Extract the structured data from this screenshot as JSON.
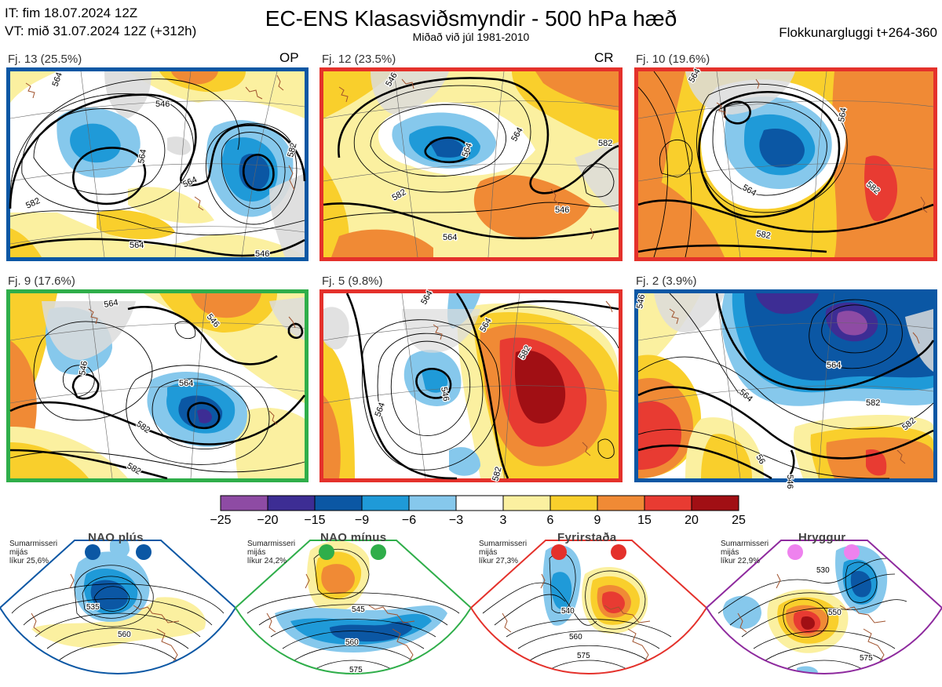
{
  "header": {
    "issue_time": "IT: fim 18.07.2024 12Z",
    "valid_time": "VT: mið 31.07.2024 12Z  (+312h)",
    "title": "EC-ENS Klasasviðsmyndir - 500 hPa hæð",
    "subtitle": "Miðað við júl 1981-2010",
    "window": "Flokkunargluggi t+264-360"
  },
  "colors": {
    "blue_frame": "#0b57a4",
    "red_frame": "#e4312b",
    "green_frame": "#2fae4a",
    "purple_frame": "#8e2a9e"
  },
  "panels": [
    {
      "label": "Fj. 13 (25.5%)",
      "tag": "OP",
      "frame": "blue",
      "contours": [
        "564",
        "546",
        "564",
        "564",
        "582",
        "582"
      ]
    },
    {
      "label": "Fj. 12 (23.5%)",
      "tag": "CR",
      "frame": "red",
      "contours": [
        "546",
        "564",
        "564",
        "582",
        "582",
        "564"
      ]
    },
    {
      "label": "Fj. 10 (19.6%)",
      "tag": "",
      "frame": "red",
      "contours": [
        "564",
        "564",
        "564",
        "582",
        "582"
      ]
    },
    {
      "label": "Fj. 9 (17.6%)",
      "tag": "",
      "frame": "green",
      "contours": [
        "564",
        "546",
        "546",
        "564",
        "582",
        "582"
      ]
    },
    {
      "label": "Fj. 5 (9.8%)",
      "tag": "",
      "frame": "red",
      "contours": [
        "564",
        "546",
        "564",
        "564",
        "582",
        "582"
      ]
    },
    {
      "label": "Fj. 2 (3.9%)",
      "tag": "",
      "frame": "blue",
      "contours": [
        "546",
        "564",
        "564",
        "582",
        "582",
        "56"
      ]
    }
  ],
  "chart_data": {
    "type": "heatmap",
    "title": "EC-ENS Klasasviðsmyndir - 500 hPa hæð",
    "subtitle": "Miðað við júl 1981-2010",
    "colorbar": {
      "ticks": [
        "−25",
        "−20",
        "−15",
        "−9",
        "−6",
        "−3",
        "3",
        "6",
        "9",
        "15",
        "20",
        "25"
      ],
      "colors": [
        "#8e4ba4",
        "#3d2d94",
        "#0b57a4",
        "#1f9ad8",
        "#86c8ec",
        "#ffffff",
        "#fbf0a0",
        "#f9cf2c",
        "#f08a35",
        "#e83b32",
        "#a10f14"
      ]
    },
    "clusters": [
      {
        "name": "Fj. 13",
        "percent": 25.5,
        "tag": "OP"
      },
      {
        "name": "Fj. 12",
        "percent": 23.5,
        "tag": "CR"
      },
      {
        "name": "Fj. 10",
        "percent": 19.6
      },
      {
        "name": "Fj. 9",
        "percent": 17.6
      },
      {
        "name": "Fj. 5",
        "percent": 9.8
      },
      {
        "name": "Fj. 2",
        "percent": 3.9
      }
    ],
    "regimes": [
      {
        "name": "NAO plús",
        "season": "Sumarmisseri",
        "note": "mijás",
        "likelihood": "líkur 25,6%",
        "percent": 25.6,
        "dot_color": "#0b57a4",
        "contours": [
          "535",
          "560"
        ]
      },
      {
        "name": "NAO mínus",
        "season": "Sumarmisseri",
        "note": "mijás",
        "likelihood": "líkur 24,2%",
        "percent": 24.2,
        "dot_color": "#2fae4a",
        "contours": [
          "545",
          "560",
          "575"
        ]
      },
      {
        "name": "Fyrirstaða",
        "season": "Sumarmisseri",
        "note": "mijás",
        "likelihood": "líkur 27,3%",
        "percent": 27.3,
        "dot_color": "#e4312b",
        "contours": [
          "540",
          "560",
          "575"
        ]
      },
      {
        "name": "Hryggur",
        "season": "Sumarmisseri",
        "note": "mijás",
        "likelihood": "líkur 22,9%",
        "percent": 22.9,
        "dot_color": "#ee82ee",
        "contours": [
          "530",
          "550",
          "575"
        ]
      }
    ]
  }
}
